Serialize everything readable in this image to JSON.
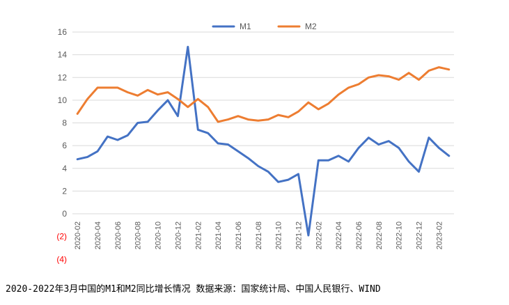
{
  "caption": "2020-2022年3月中国的M1和M2同比增长情况 数据来源：国家统计局、中国人民银行、WIND",
  "chart_data": {
    "type": "line",
    "title": "",
    "xlabel": "",
    "ylabel": "",
    "ylim": [
      -4,
      16
    ],
    "yticks": [
      {
        "value": 16,
        "label": "16"
      },
      {
        "value": 14,
        "label": "14"
      },
      {
        "value": 12,
        "label": "12"
      },
      {
        "value": 10,
        "label": "10"
      },
      {
        "value": 8,
        "label": "8"
      },
      {
        "value": 6,
        "label": "6"
      },
      {
        "value": 4,
        "label": "4"
      },
      {
        "value": 2,
        "label": "2"
      },
      {
        "value": 0,
        "label": "0"
      },
      {
        "value": -2,
        "label": "(2)"
      },
      {
        "value": -4,
        "label": "(4)"
      }
    ],
    "negative_label_color": "#ff0000",
    "grid": true,
    "legend_position": "top",
    "x": [
      "2020-02",
      "2020-03",
      "2020-04",
      "2020-05",
      "2020-06",
      "2020-07",
      "2020-08",
      "2020-09",
      "2020-10",
      "2020-11",
      "2020-12",
      "2021-01",
      "2021-02",
      "2021-03",
      "2021-04",
      "2021-05",
      "2021-06",
      "2021-07",
      "2021-08",
      "2021-09",
      "2021-10",
      "2021-11",
      "2021-12",
      "2022-01",
      "2022-02",
      "2022-03",
      "2022-04",
      "2022-05",
      "2022-06",
      "2022-07",
      "2022-08",
      "2022-09",
      "2022-10",
      "2022-11",
      "2022-12",
      "2023-01",
      "2023-02",
      "2023-03"
    ],
    "series": [
      {
        "name": "M1",
        "color": "#4472c4",
        "values": [
          4.8,
          5.0,
          5.5,
          6.8,
          6.5,
          6.9,
          8.0,
          8.1,
          9.1,
          10.0,
          8.6,
          14.7,
          7.4,
          7.1,
          6.2,
          6.1,
          5.5,
          4.9,
          4.2,
          3.7,
          2.8,
          3.0,
          3.5,
          -1.9,
          4.7,
          4.7,
          5.1,
          4.6,
          5.8,
          6.7,
          6.1,
          6.4,
          5.8,
          4.6,
          3.7,
          6.7,
          5.8,
          5.1
        ]
      },
      {
        "name": "M2",
        "color": "#ed7d31",
        "values": [
          8.8,
          10.1,
          11.1,
          11.1,
          11.1,
          10.7,
          10.4,
          10.9,
          10.5,
          10.7,
          10.1,
          9.4,
          10.1,
          9.4,
          8.1,
          8.3,
          8.6,
          8.3,
          8.2,
          8.3,
          8.7,
          8.5,
          9.0,
          9.8,
          9.2,
          9.7,
          10.5,
          11.1,
          11.4,
          12.0,
          12.2,
          12.1,
          11.8,
          12.4,
          11.8,
          12.6,
          12.9,
          12.7
        ]
      }
    ]
  }
}
